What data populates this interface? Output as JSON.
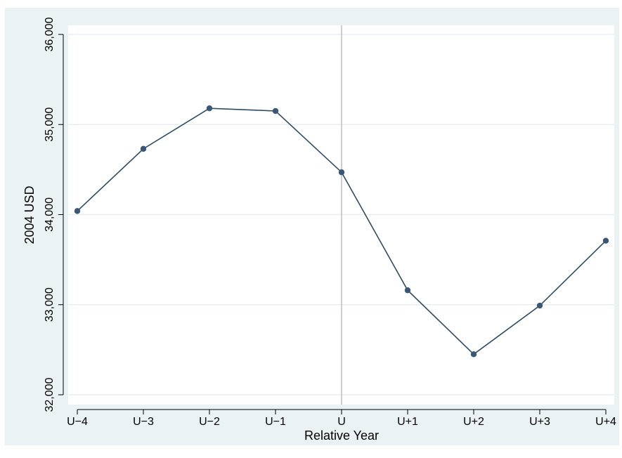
{
  "chart_data": {
    "type": "line",
    "title": "",
    "xlabel": "Relative Year",
    "ylabel": "2004 USD",
    "categories": [
      "U−4",
      "U−3",
      "U−2",
      "U−1",
      "U",
      "U+1",
      "U+2",
      "U+3",
      "U+4"
    ],
    "series": [
      {
        "values": [
          34040,
          34730,
          35180,
          35150,
          34470,
          33160,
          32450,
          32990,
          33710
        ]
      }
    ],
    "ylim": [
      32000,
      36000
    ],
    "yticks": [
      32000,
      33000,
      34000,
      35000,
      36000
    ],
    "ytick_labels": [
      "32,000",
      "33,000",
      "34,000",
      "35,000",
      "36,000"
    ],
    "reference_line_at": "U",
    "grid": true,
    "colors": {
      "line": "#2f4c64",
      "marker": "#3a5875",
      "plot_background": "#ffffff",
      "outer_background": "#eaf2f3",
      "grid": "#e8eef0",
      "reference_line": "#bdbdbd"
    }
  }
}
